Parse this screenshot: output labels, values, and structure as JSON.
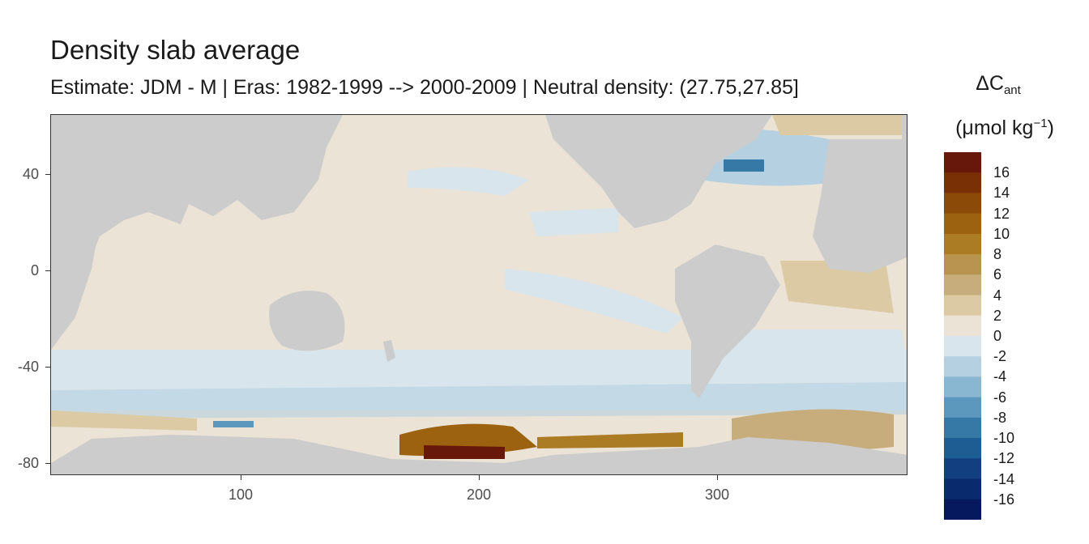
{
  "title": "Density slab average",
  "subtitle": "Estimate: JDM - M | Eras: 1982-1999 --> 2000-2009 | Neutral density: (27.75,27.85]",
  "legend": {
    "title_main": "ΔC",
    "title_sub": "ant",
    "unit_open": "(μmol kg",
    "unit_sup": "−1",
    "unit_close": ")",
    "labels": [
      "16",
      "14",
      "12",
      "10",
      "8",
      "6",
      "4",
      "2",
      "0",
      "-2",
      "-4",
      "-6",
      "-8",
      "-10",
      "-12",
      "-14",
      "-16"
    ],
    "colors": [
      "#67180a",
      "#7a3005",
      "#8c4a08",
      "#9c620f",
      "#ab7c24",
      "#b89450",
      "#c8ad7c",
      "#dccaa4",
      "#eae3d6",
      "#d9e5ec",
      "#b4d0e1",
      "#89b7d1",
      "#5c98bd",
      "#3679a7",
      "#1d5d94",
      "#123f7f",
      "#0a2a6e",
      "#06195f"
    ]
  },
  "map": {
    "x_axis_ticks": [
      "100",
      "200",
      "300"
    ],
    "y_axis_ticks": [
      "40",
      "0",
      "-40",
      "-80"
    ],
    "land_color": "#cccccc",
    "ocean_base_color": "#eae3d6"
  }
}
